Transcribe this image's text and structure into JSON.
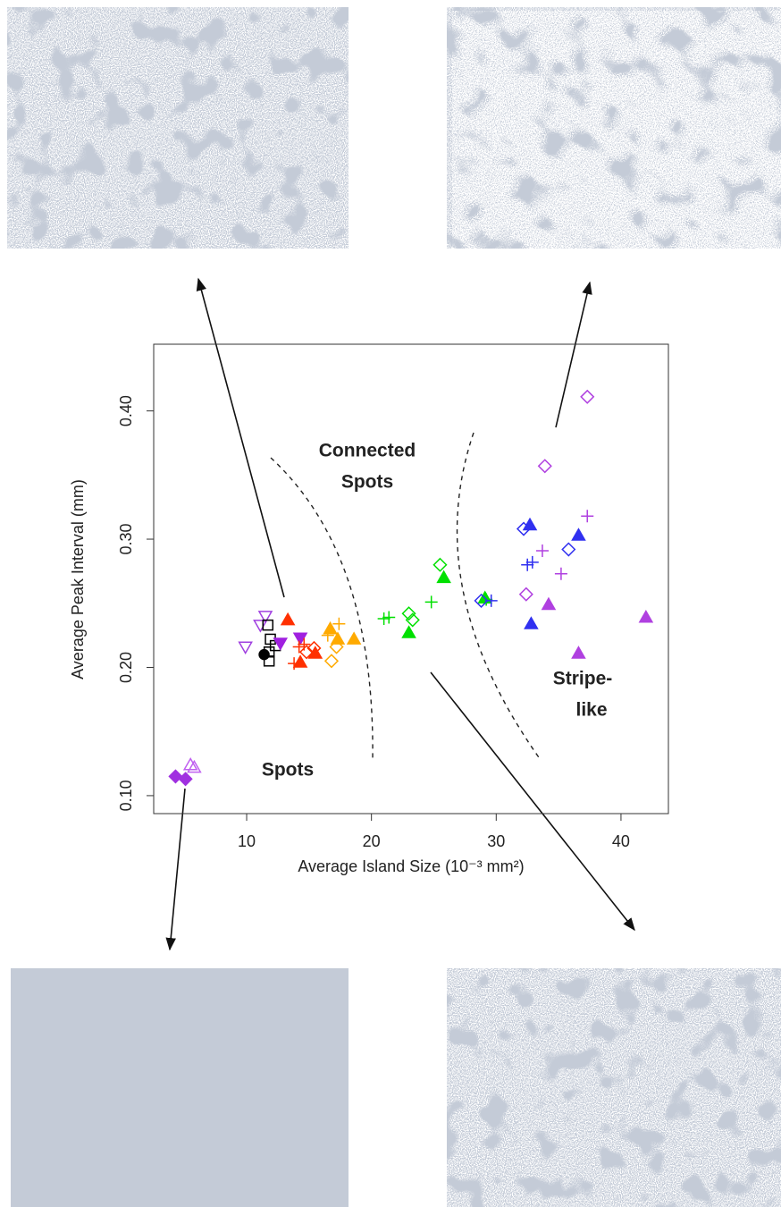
{
  "chart_data": {
    "type": "scatter",
    "xlabel": "Average Island Size (10⁻³ mm²)",
    "ylabel": "Average Peak Interval (mm)",
    "annotations": [
      [
        "Connected",
        "Spots"
      ],
      [
        "Spots"
      ],
      [
        "Stripe-",
        "like"
      ]
    ],
    "xlim": [
      2.55,
      43.8
    ],
    "ylim": [
      0.086,
      0.452
    ],
    "xticks": [
      10,
      20,
      30,
      40
    ],
    "yticks": [
      {
        "value": 0.1,
        "label": "0.10"
      },
      {
        "value": 0.2,
        "label": "0.20"
      },
      {
        "value": 0.3,
        "label": "0.30"
      },
      {
        "value": 0.4,
        "label": "0.40"
      }
    ],
    "series": [
      {
        "color": "#a030e0",
        "marker": "diamond",
        "filled": true,
        "x": [
          4.3,
          5.1
        ],
        "values": [
          0.115,
          0.113
        ]
      },
      {
        "color": "#c060f0",
        "marker": "triangle",
        "filled": false,
        "x": [
          5.5,
          5.8
        ],
        "values": [
          0.124,
          0.122
        ]
      },
      {
        "color": "#a040e0",
        "marker": "triangle-down",
        "filled": false,
        "x": [
          9.9,
          11.1,
          11.5
        ],
        "values": [
          0.216,
          0.233,
          0.24
        ]
      },
      {
        "color": "#000000",
        "marker": "square",
        "filled": false,
        "x": [
          11.8,
          11.8,
          11.9,
          12.3,
          11.7
        ],
        "values": [
          0.205,
          0.212,
          0.222,
          0.217,
          0.233
        ]
      },
      {
        "color": "#000000",
        "marker": "circle",
        "filled": true,
        "x": [
          11.4
        ],
        "values": [
          0.21
        ]
      },
      {
        "color": "#a020e0",
        "marker": "triangle-down",
        "filled": true,
        "x": [
          12.7,
          14.3
        ],
        "values": [
          0.219,
          0.223
        ]
      },
      {
        "color": "#ff3000",
        "marker": "triangle",
        "filled": true,
        "x": [
          13.3,
          14.3,
          15.5
        ],
        "values": [
          0.237,
          0.204,
          0.211
        ]
      },
      {
        "color": "#ff3000",
        "marker": "plus",
        "filled": false,
        "x": [
          13.8,
          14.2,
          14.6
        ],
        "values": [
          0.203,
          0.216,
          0.218
        ]
      },
      {
        "color": "#ff3000",
        "marker": "diamond",
        "filled": false,
        "x": [
          14.8,
          15.4
        ],
        "values": [
          0.212,
          0.215
        ]
      },
      {
        "color": "#ffaa00",
        "marker": "triangle",
        "filled": true,
        "x": [
          16.7,
          17.3,
          18.6
        ],
        "values": [
          0.23,
          0.222,
          0.222
        ]
      },
      {
        "color": "#ffaa00",
        "marker": "plus",
        "filled": false,
        "x": [
          16.5,
          17.4
        ],
        "values": [
          0.225,
          0.234
        ]
      },
      {
        "color": "#ffaa00",
        "marker": "diamond",
        "filled": false,
        "x": [
          16.8,
          17.2
        ],
        "values": [
          0.205,
          0.216
        ]
      },
      {
        "color": "#00e000",
        "marker": "plus",
        "filled": false,
        "x": [
          21.0,
          21.4,
          24.8,
          29.2
        ],
        "values": [
          0.238,
          0.239,
          0.251,
          0.253
        ]
      },
      {
        "color": "#00e000",
        "marker": "diamond",
        "filled": false,
        "x": [
          23.0,
          23.3,
          25.5
        ],
        "values": [
          0.242,
          0.237,
          0.28
        ]
      },
      {
        "color": "#00e000",
        "marker": "triangle",
        "filled": true,
        "x": [
          23.0,
          25.8,
          29.1
        ],
        "values": [
          0.227,
          0.27,
          0.254
        ]
      },
      {
        "color": "#3030f0",
        "marker": "diamond",
        "filled": false,
        "x": [
          28.8,
          32.2,
          35.8
        ],
        "values": [
          0.252,
          0.308,
          0.292
        ]
      },
      {
        "color": "#3030f0",
        "marker": "plus",
        "filled": false,
        "x": [
          29.6,
          32.5,
          32.9
        ],
        "values": [
          0.252,
          0.28,
          0.282
        ]
      },
      {
        "color": "#3030f0",
        "marker": "triangle",
        "filled": true,
        "x": [
          32.7,
          32.8,
          36.6
        ],
        "values": [
          0.311,
          0.234,
          0.303
        ]
      },
      {
        "color": "#b040e0",
        "marker": "diamond",
        "filled": false,
        "x": [
          32.4,
          33.9,
          37.3
        ],
        "values": [
          0.257,
          0.357,
          0.411
        ]
      },
      {
        "color": "#b040e0",
        "marker": "plus",
        "filled": false,
        "x": [
          33.7,
          35.2,
          37.3
        ],
        "values": [
          0.291,
          0.273,
          0.318
        ]
      },
      {
        "color": "#b040e0",
        "marker": "triangle",
        "filled": true,
        "x": [
          34.2,
          36.6,
          42.0
        ],
        "values": [
          0.249,
          0.211,
          0.239
        ]
      }
    ]
  }
}
